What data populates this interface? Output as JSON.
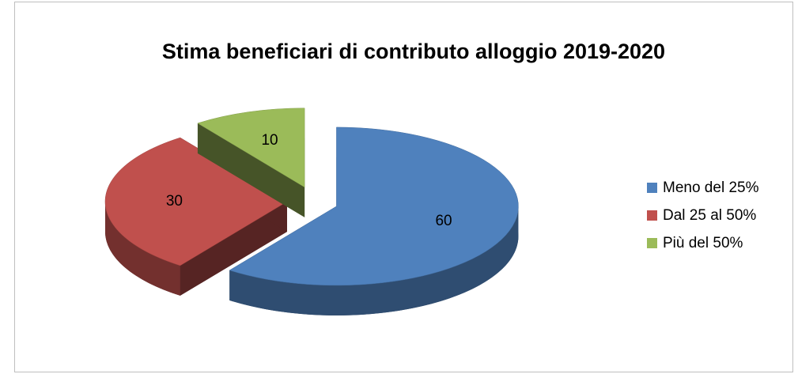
{
  "chart_data": {
    "type": "pie",
    "title": "Stima beneficiari di contributo alloggio 2019-2020",
    "categories": [
      "Meno del 25%",
      "Dal 25 al 50%",
      "Più del 50%"
    ],
    "values": [
      60,
      30,
      10
    ],
    "colors": [
      "#4f81bd",
      "#c0504d",
      "#9bbb59"
    ],
    "legend": "right"
  }
}
